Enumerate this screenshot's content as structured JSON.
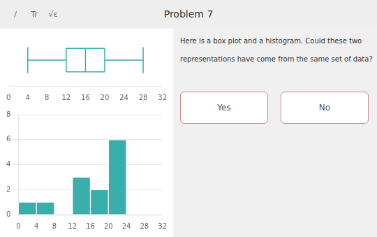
{
  "chart_data": [
    {
      "type": "box",
      "title": "Problem 7",
      "annotations": [
        "/",
        "Tr",
        "√ε",
        "Here is a box plot and a histogram. Could these two",
        "representations have come from the same set of data?",
        "Yes",
        "No"
      ],
      "values": {
        "min": 4,
        "q1": 12,
        "median": 16,
        "q3": 20,
        "max": 28
      },
      "color": "#3aaeaa",
      "xlim": [
        0,
        32
      ],
      "xticks": [
        0,
        4,
        8,
        12,
        16,
        20,
        24,
        28,
        32
      ],
      "tick_labels": "x",
      "grid": false
    },
    {
      "type": "histogram",
      "bins": [
        0,
        4,
        8,
        12,
        16,
        20,
        24,
        28,
        32
      ],
      "values": [
        1,
        1,
        0,
        3,
        2,
        6,
        0,
        0
      ],
      "color": "#3aaeaa",
      "xlim": [
        0,
        32
      ],
      "xticks": [
        0,
        4,
        8,
        12,
        16,
        20,
        24,
        28,
        32
      ],
      "ylim": [
        0,
        8
      ],
      "yticks": [
        0,
        2,
        4,
        6,
        8
      ],
      "grid": true
    }
  ]
}
